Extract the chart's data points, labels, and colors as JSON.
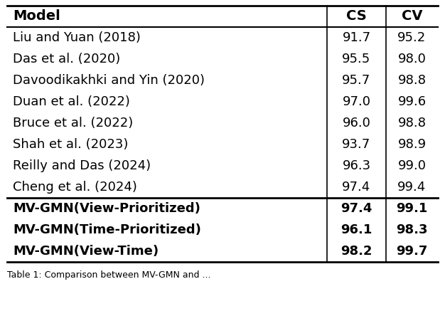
{
  "headers": [
    "Model",
    "CS",
    "CV"
  ],
  "rows": [
    [
      "Liu and Yuan (2018)",
      "91.7",
      "95.2"
    ],
    [
      "Das et al. (2020)",
      "95.5",
      "98.0"
    ],
    [
      "Davoodikakhki and Yin (2020)",
      "95.7",
      "98.8"
    ],
    [
      "Duan et al. (2022)",
      "97.0",
      "99.6"
    ],
    [
      "Bruce et al. (2022)",
      "96.0",
      "98.8"
    ],
    [
      "Shah et al. (2023)",
      "93.7",
      "98.9"
    ],
    [
      "Reilly and Das (2024)",
      "96.3",
      "99.0"
    ],
    [
      "Cheng et al. (2024)",
      "97.4",
      "99.4"
    ]
  ],
  "bold_rows": [
    [
      "MV-GMN(View-Prioritized)",
      "97.4",
      "99.1"
    ],
    [
      "MV-GMN(Time-Prioritized)",
      "96.1",
      "98.3"
    ],
    [
      "MV-GMN(View-Time)",
      "98.2",
      "99.7"
    ]
  ],
  "bg_color": "#ffffff",
  "text_color": "#000000",
  "font_size": 13,
  "caption": "Table 1: Comparison between MV-GMN and ..."
}
